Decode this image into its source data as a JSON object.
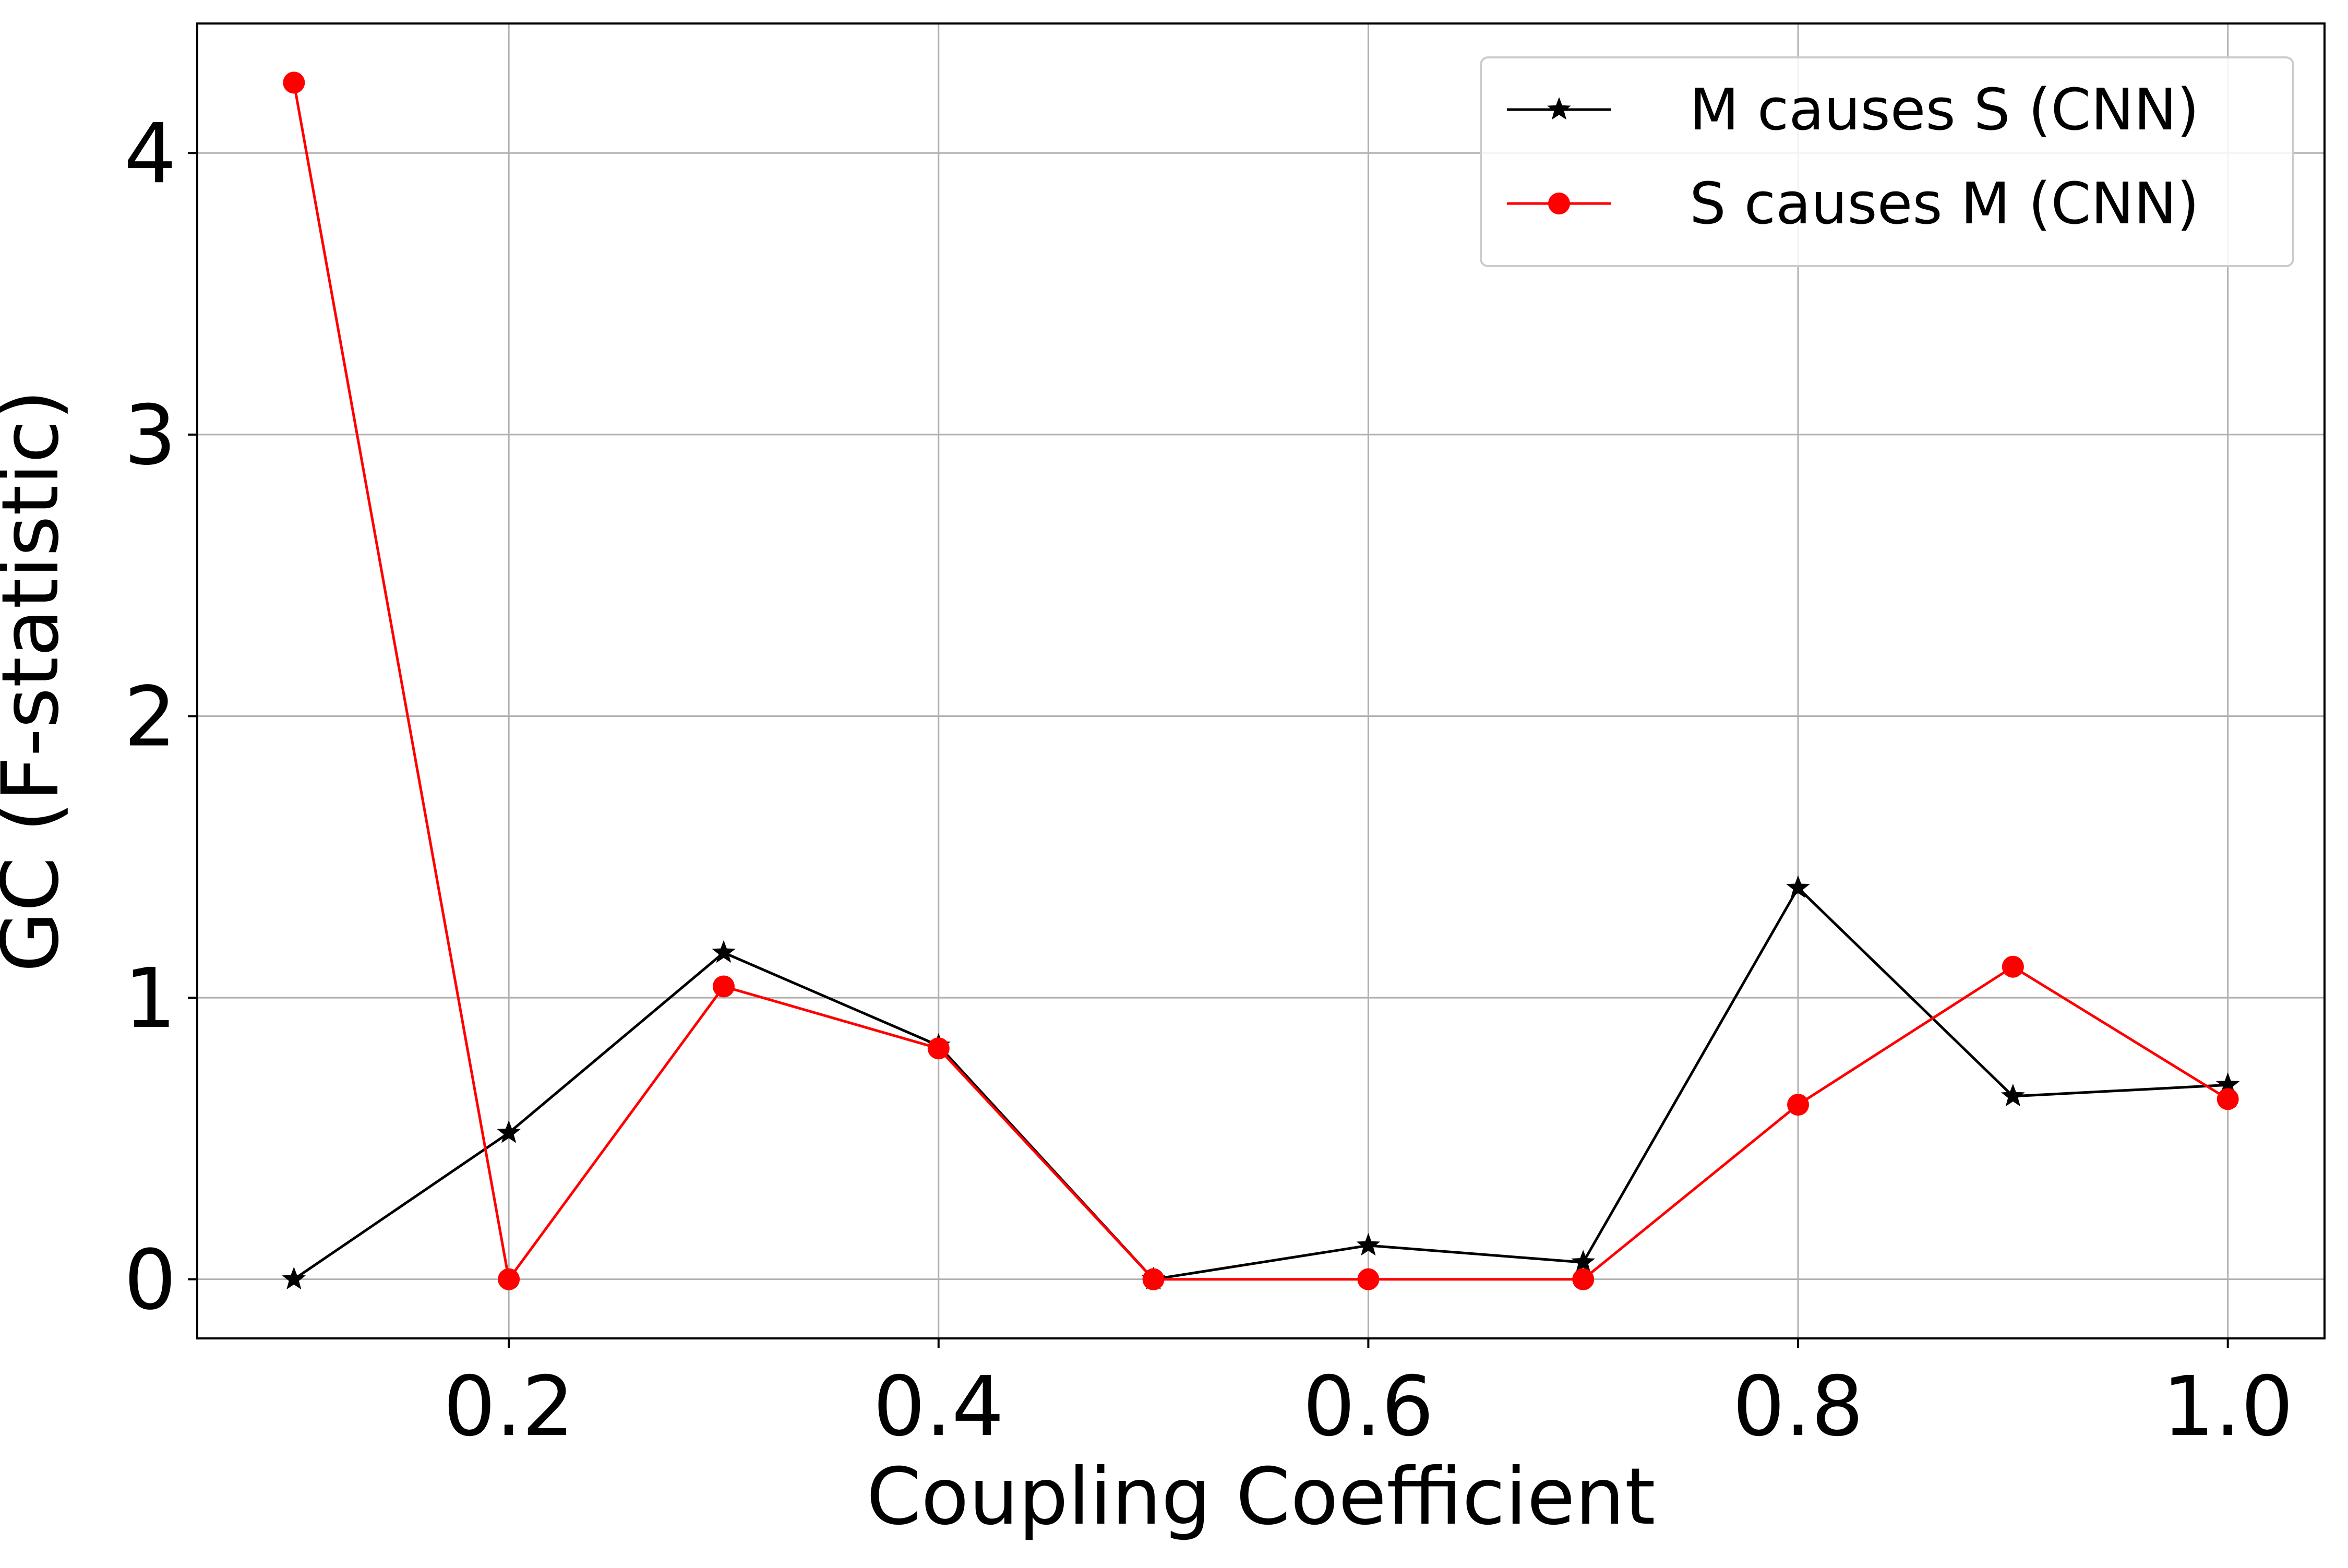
{
  "chart_data": {
    "type": "line",
    "title": "",
    "xlabel": "Coupling Coefficient",
    "ylabel": "GC (F-statistic)",
    "xlim": [
      0.055,
      1.045
    ],
    "ylim": [
      -0.21,
      4.46
    ],
    "xticks": [
      0.2,
      0.4,
      0.6,
      0.8,
      1.0
    ],
    "xtick_labels": [
      "0.2",
      "0.4",
      "0.6",
      "0.8",
      "1.0"
    ],
    "yticks": [
      0,
      1,
      2,
      3,
      4
    ],
    "ytick_labels": [
      "0",
      "1",
      "2",
      "3",
      "4"
    ],
    "grid": true,
    "legend_position": "top-right",
    "x": [
      0.1,
      0.2,
      0.3,
      0.4,
      0.5,
      0.6,
      0.7,
      0.8,
      0.9,
      1.0
    ],
    "series": [
      {
        "name": "M causes S (CNN)",
        "color": "#000000",
        "marker": "star",
        "values": [
          0.0,
          0.52,
          1.16,
          0.83,
          0.0,
          0.12,
          0.06,
          1.39,
          0.65,
          0.69
        ]
      },
      {
        "name": "S causes M (CNN)",
        "color": "#ff0000",
        "marker": "circle",
        "values": [
          4.25,
          0.0,
          1.04,
          0.82,
          0.0,
          0.0,
          0.0,
          0.62,
          1.11,
          0.64
        ]
      }
    ]
  }
}
